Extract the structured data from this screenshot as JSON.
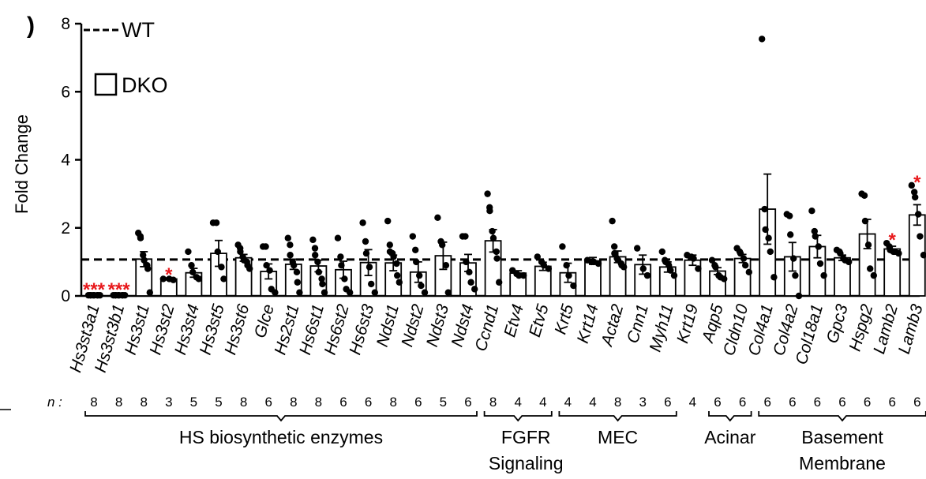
{
  "chart_data": {
    "type": "bar",
    "ylabel": "Fold Change",
    "ylim": [
      0,
      8
    ],
    "yticks": [
      "0",
      "2",
      "4",
      "6",
      "8"
    ],
    "reference_line": {
      "label": "WT",
      "value": 1.07,
      "style": "dashed"
    },
    "legend": {
      "position": "top-left",
      "entries": [
        {
          "label": "WT",
          "marker": "dashed-line"
        },
        {
          "label": "DKO",
          "marker": "open-box"
        }
      ]
    },
    "panel_letter_fragment": ")",
    "n_label": "n :",
    "categories": [
      "Hs3st3a1",
      "Hs3st3b1",
      "Hs3st1",
      "Hs3st2",
      "Hs3st4",
      "Hs3st5",
      "Hs3st6",
      "Glce",
      "Hs2st1",
      "Hs6st1",
      "Hs6st2",
      "Hs6st3",
      "Ndst1",
      "Ndst2",
      "Ndst3",
      "Ndst4",
      "Ccnd1",
      "Etv4",
      "Etv5",
      "Krt5",
      "Krt14",
      "Acta2",
      "Cnn1",
      "Myh11",
      "Krt19",
      "Aqp5",
      "Cldn10",
      "Col4a1",
      "Col4a2",
      "Col18a1",
      "Gpc3",
      "Hspg2",
      "Lamb2",
      "Lamb3"
    ],
    "means": [
      0.02,
      0.02,
      1.08,
      0.5,
      0.68,
      1.25,
      1.12,
      0.72,
      0.93,
      0.88,
      0.77,
      0.98,
      0.97,
      0.7,
      1.18,
      0.97,
      1.62,
      0.67,
      0.87,
      0.68,
      1.03,
      1.15,
      0.92,
      0.85,
      1.05,
      0.73,
      1.1,
      2.55,
      1.15,
      1.45,
      1.12,
      1.82,
      1.38,
      2.38
    ],
    "sem": [
      0.01,
      0.01,
      0.22,
      0.03,
      0.13,
      0.38,
      0.1,
      0.22,
      0.15,
      0.17,
      0.25,
      0.38,
      0.23,
      0.3,
      0.4,
      0.25,
      0.33,
      0.07,
      0.12,
      0.28,
      0.1,
      0.17,
      0.28,
      0.15,
      0.15,
      0.1,
      0.12,
      1.03,
      0.42,
      0.33,
      0.08,
      0.43,
      0.08,
      0.3
    ],
    "points": [
      [
        0.02,
        0.02,
        0.02,
        0.02,
        0.02,
        0.02,
        0.02,
        0.02
      ],
      [
        0.02,
        0.02,
        0.02,
        0.02,
        0.02,
        0.02,
        0.02,
        0.02
      ],
      [
        1.85,
        1.75,
        1.7,
        1.2,
        1.05,
        0.9,
        0.8,
        0.1
      ],
      [
        0.5,
        0.5,
        0.47
      ],
      [
        1.3,
        0.9,
        0.7,
        0.55,
        0.5
      ],
      [
        2.15,
        2.15,
        1.3,
        0.85,
        0.5
      ],
      [
        1.5,
        1.4,
        1.3,
        1.15,
        1.05,
        1.0,
        0.9,
        0.8
      ],
      [
        1.45,
        1.45,
        0.9,
        0.75,
        0.2,
        0.1
      ],
      [
        1.7,
        1.5,
        1.2,
        1.0,
        0.9,
        0.7,
        0.4,
        0.1
      ],
      [
        1.65,
        1.4,
        1.2,
        1.0,
        0.7,
        0.5,
        0.35,
        0.1
      ],
      [
        1.7,
        1.15,
        0.9,
        0.5,
        0.2,
        0.1
      ],
      [
        2.15,
        1.6,
        1.25,
        0.85,
        0.35,
        0.1
      ],
      [
        2.2,
        1.5,
        1.3,
        1.25,
        1.15,
        0.95,
        0.6,
        0.4
      ],
      [
        1.75,
        1.35,
        1.0,
        0.6,
        0.3,
        0.1
      ],
      [
        2.3,
        1.6,
        1.5,
        0.9,
        0.1
      ],
      [
        1.75,
        1.75,
        1.0,
        0.7,
        0.4,
        0.2
      ],
      [
        3.0,
        2.6,
        2.5,
        1.9,
        1.7,
        1.3,
        1.1,
        0.4
      ],
      [
        0.75,
        0.65,
        0.6,
        0.6
      ],
      [
        1.15,
        1.0,
        0.9,
        0.8
      ],
      [
        1.45,
        0.9,
        0.6,
        0.3
      ],
      [
        1.05,
        1.0,
        1.0,
        0.95
      ],
      [
        2.2,
        1.45,
        1.25,
        1.1,
        1.05,
        0.95,
        0.9,
        0.85
      ],
      [
        1.4,
        0.8,
        0.6
      ],
      [
        1.3,
        1.05,
        1.0,
        0.9,
        0.75,
        0.6
      ],
      [
        1.2,
        1.15,
        1.1,
        0.8
      ],
      [
        1.05,
        0.9,
        0.85,
        0.6,
        0.55,
        0.5
      ],
      [
        1.4,
        1.3,
        1.25,
        1.1,
        0.9,
        0.7
      ],
      [
        7.55,
        2.55,
        1.95,
        1.7,
        1.3,
        0.55
      ],
      [
        2.4,
        2.35,
        1.8,
        1.1,
        0.6,
        0.0
      ],
      [
        2.5,
        1.9,
        1.75,
        1.45,
        0.95,
        0.6
      ],
      [
        1.35,
        1.3,
        1.25,
        1.1,
        1.05,
        1.0
      ],
      [
        3.0,
        2.95,
        2.2,
        1.5,
        0.8,
        0.6
      ],
      [
        1.55,
        1.45,
        1.35,
        1.3,
        1.3,
        1.25
      ],
      [
        3.25,
        3.05,
        2.9,
        2.4,
        1.75,
        1.2
      ]
    ],
    "significance": [
      "***",
      "***",
      "",
      "*",
      "",
      "",
      "",
      "",
      "",
      "",
      "",
      "",
      "",
      "",
      "",
      "",
      "",
      "",
      "",
      "",
      "",
      "",
      "",
      "",
      "",
      "",
      "",
      "",
      "",
      "",
      "",
      "",
      "*",
      "*"
    ],
    "n": [
      "8",
      "8",
      "8",
      "3",
      "5",
      "5",
      "8",
      "6",
      "8",
      "8",
      "6",
      "6",
      "8",
      "6",
      "5",
      "6",
      "8",
      "4",
      "4",
      "4",
      "4",
      "8",
      "3",
      "6",
      "4",
      "6",
      "6",
      "6",
      "6",
      "6",
      "6",
      "6",
      "6",
      "6"
    ],
    "groups": [
      {
        "label": [
          "HS biosynthetic enzymes"
        ],
        "from": 0,
        "to": 15
      },
      {
        "label": [
          "FGFR",
          "Signaling"
        ],
        "from": 16,
        "to": 18
      },
      {
        "label": [
          "MEC"
        ],
        "from": 19,
        "to": 23
      },
      {
        "label": [
          "Acinar"
        ],
        "from": 25,
        "to": 26
      },
      {
        "label": [
          "Basement",
          "Membrane"
        ],
        "from": 27,
        "to": 33
      }
    ]
  }
}
